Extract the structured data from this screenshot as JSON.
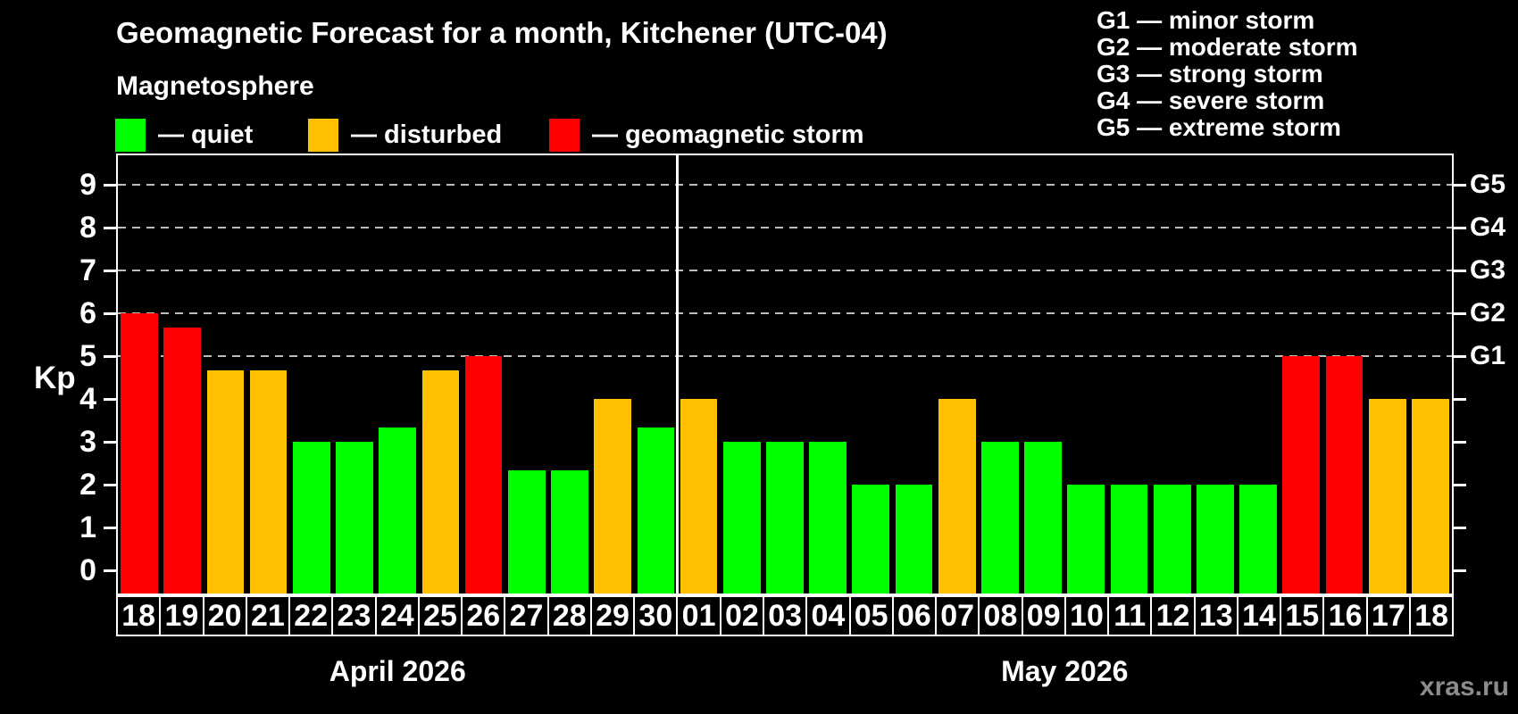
{
  "header": {
    "title": "Geomagnetic Forecast for a month, Kitchener (UTC-04)",
    "subtitle": "Magnetosphere",
    "legend": [
      {
        "text": "— quiet",
        "status": "quiet",
        "color": "#00ff00"
      },
      {
        "text": "— disturbed",
        "status": "disturbed",
        "color": "#ffc000"
      },
      {
        "text": "— geomagnetic storm",
        "status": "storm",
        "color": "#ff0000"
      }
    ]
  },
  "storm_scale": {
    "lines": [
      "G1 — minor storm",
      "G2 — moderate storm",
      "G3 — strong storm",
      "G4 — severe storm",
      "G5 — extreme storm"
    ]
  },
  "chart_data": {
    "type": "bar",
    "title": "Geomagnetic Forecast for a month, Kitchener (UTC-04)",
    "ylabel": "Kp",
    "ylim": [
      0,
      9.8
    ],
    "yticks": [
      0,
      1,
      2,
      3,
      4,
      5,
      6,
      7,
      8,
      9
    ],
    "gridline_levels": [
      5,
      6,
      7,
      8,
      9
    ],
    "grid": "dashed horizontal lines at Kp 5-9",
    "legend_position": "top-left",
    "right_axis": [
      {
        "kp": 5,
        "label": "G1"
      },
      {
        "kp": 6,
        "label": "G2"
      },
      {
        "kp": 7,
        "label": "G3"
      },
      {
        "kp": 8,
        "label": "G4"
      },
      {
        "kp": 9,
        "label": "G5"
      }
    ],
    "status_colors": {
      "quiet": "#00ff00",
      "disturbed": "#ffc000",
      "storm": "#ff0000"
    },
    "sections": [
      {
        "month": "April 2026",
        "bars": [
          {
            "day": "18",
            "kp": 6.0,
            "status": "storm"
          },
          {
            "day": "19",
            "kp": 5.67,
            "status": "storm"
          },
          {
            "day": "20",
            "kp": 4.67,
            "status": "disturbed"
          },
          {
            "day": "21",
            "kp": 4.67,
            "status": "disturbed"
          },
          {
            "day": "22",
            "kp": 3.0,
            "status": "quiet"
          },
          {
            "day": "23",
            "kp": 3.0,
            "status": "quiet"
          },
          {
            "day": "24",
            "kp": 3.33,
            "status": "quiet"
          },
          {
            "day": "25",
            "kp": 4.67,
            "status": "disturbed"
          },
          {
            "day": "26",
            "kp": 5.0,
            "status": "storm"
          },
          {
            "day": "27",
            "kp": 2.33,
            "status": "quiet"
          },
          {
            "day": "28",
            "kp": 2.33,
            "status": "quiet"
          },
          {
            "day": "29",
            "kp": 4.0,
            "status": "disturbed"
          },
          {
            "day": "30",
            "kp": 3.33,
            "status": "quiet"
          }
        ]
      },
      {
        "month": "May 2026",
        "bars": [
          {
            "day": "01",
            "kp": 4.0,
            "status": "disturbed"
          },
          {
            "day": "02",
            "kp": 3.0,
            "status": "quiet"
          },
          {
            "day": "03",
            "kp": 3.0,
            "status": "quiet"
          },
          {
            "day": "04",
            "kp": 3.0,
            "status": "quiet"
          },
          {
            "day": "05",
            "kp": 2.0,
            "status": "quiet"
          },
          {
            "day": "06",
            "kp": 2.0,
            "status": "quiet"
          },
          {
            "day": "07",
            "kp": 4.0,
            "status": "disturbed"
          },
          {
            "day": "08",
            "kp": 3.0,
            "status": "quiet"
          },
          {
            "day": "09",
            "kp": 3.0,
            "status": "quiet"
          },
          {
            "day": "10",
            "kp": 2.0,
            "status": "quiet"
          },
          {
            "day": "11",
            "kp": 2.0,
            "status": "quiet"
          },
          {
            "day": "12",
            "kp": 2.0,
            "status": "quiet"
          },
          {
            "day": "13",
            "kp": 2.0,
            "status": "quiet"
          },
          {
            "day": "14",
            "kp": 2.0,
            "status": "quiet"
          },
          {
            "day": "15",
            "kp": 5.0,
            "status": "storm"
          },
          {
            "day": "16",
            "kp": 5.0,
            "status": "storm"
          },
          {
            "day": "17",
            "kp": 4.0,
            "status": "disturbed"
          },
          {
            "day": "18",
            "kp": 4.0,
            "status": "disturbed"
          }
        ]
      }
    ]
  },
  "watermark": "xras.ru"
}
